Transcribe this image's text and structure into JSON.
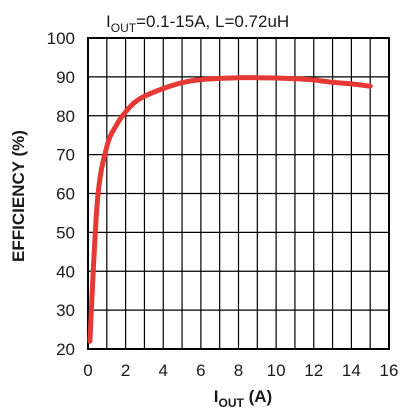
{
  "chart_data": {
    "type": "line",
    "title": {
      "main": "I",
      "sub": "OUT",
      "rest": "=0.1-15A, L=0.72uH"
    },
    "xlabel": {
      "main": "I",
      "sub": "OUT",
      "rest": " (A)"
    },
    "ylabel": "EFFICIENCY (%)",
    "xlim": [
      0,
      16
    ],
    "ylim": [
      20,
      100
    ],
    "x_ticks": [
      0,
      2,
      4,
      6,
      8,
      10,
      12,
      14,
      16
    ],
    "y_ticks": [
      20,
      30,
      40,
      50,
      60,
      70,
      80,
      90,
      100
    ],
    "x_grid_step": 1,
    "y_grid_step": 10,
    "grid": true,
    "series": [
      {
        "color": "#e53935",
        "x": [
          0.1,
          0.5,
          1.0,
          1.5,
          2.0,
          2.5,
          3.0,
          4.0,
          5.0,
          6.0,
          7.0,
          8.0,
          9.0,
          10.0,
          11.0,
          12.0,
          13.0,
          14.0,
          15.0
        ],
        "y": [
          22,
          58,
          72,
          77.5,
          81,
          83.5,
          85,
          87,
          88.5,
          89.3,
          89.6,
          89.8,
          89.8,
          89.7,
          89.5,
          89.2,
          88.6,
          88.2,
          87.6
        ]
      }
    ]
  }
}
